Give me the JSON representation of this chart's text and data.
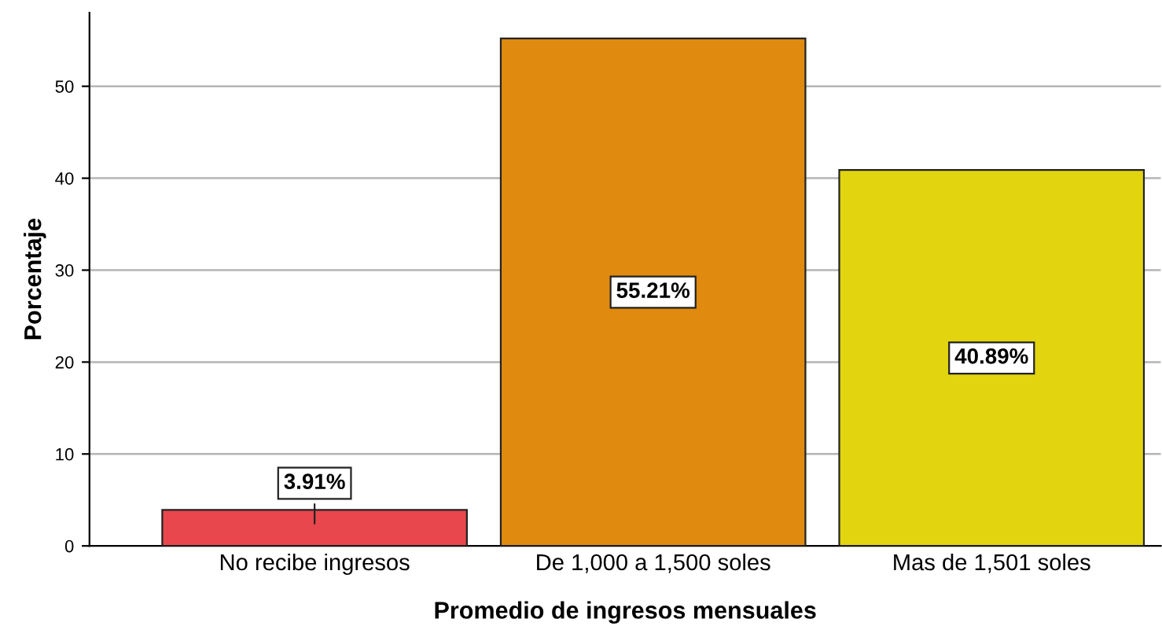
{
  "chart_data": {
    "type": "bar",
    "xlabel": "Promedio de ingresos mensuales",
    "ylabel": "Porcentaje",
    "categories": [
      "No recibe ingresos",
      "De 1,000 a 1,500 soles",
      "Mas de 1,501 soles"
    ],
    "values": [
      3.91,
      55.21,
      40.89
    ],
    "colors": [
      "#e8474d",
      "#e08a10",
      "#e2d510"
    ],
    "value_labels": [
      "3.91%",
      "55.21%",
      "40.89%"
    ],
    "ylim": [
      0,
      58
    ],
    "yticks": [
      0,
      10,
      20,
      30,
      40,
      50
    ],
    "grid": "y"
  }
}
